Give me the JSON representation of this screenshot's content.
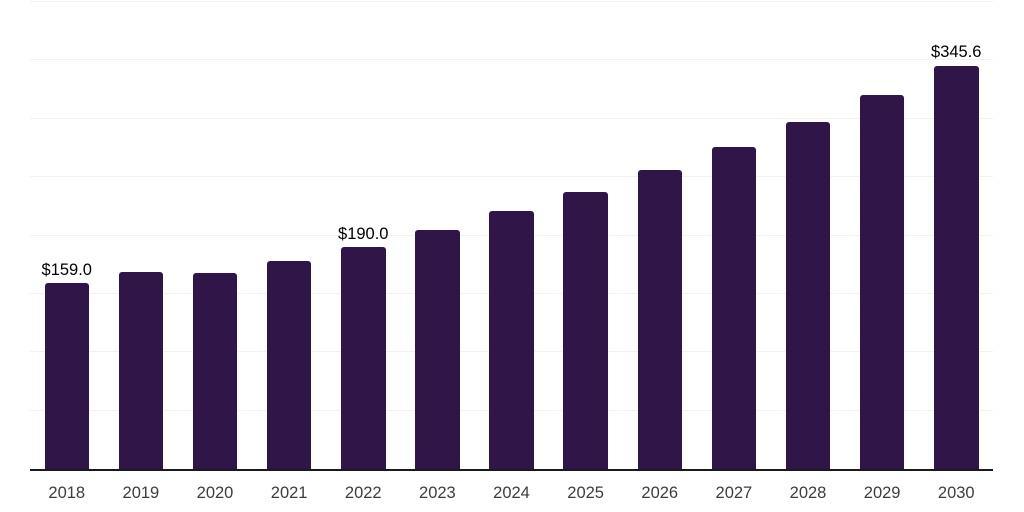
{
  "chart_data": {
    "type": "bar",
    "title": "",
    "xlabel": "",
    "ylabel": "",
    "categories": [
      "2018",
      "2019",
      "2020",
      "2021",
      "2022",
      "2023",
      "2024",
      "2025",
      "2026",
      "2027",
      "2028",
      "2029",
      "2030"
    ],
    "values": [
      159.0,
      169.0,
      167.9,
      177.8,
      190.0,
      204.7,
      220.6,
      237.7,
      256.2,
      276.0,
      297.5,
      320.5,
      345.6
    ],
    "data_labels": {
      "0": "$159.0",
      "4": "$190.0",
      "12": "$345.6"
    },
    "ylim": [
      0,
      400
    ],
    "gridline_step": 50,
    "grid": true,
    "legend": "none",
    "colors": {
      "bar": "#2f1548",
      "gridline": "#f2f2f2",
      "axis_line": "#1a1a1a",
      "tick_label": "#3d3d3d",
      "data_label": "#000000"
    }
  }
}
